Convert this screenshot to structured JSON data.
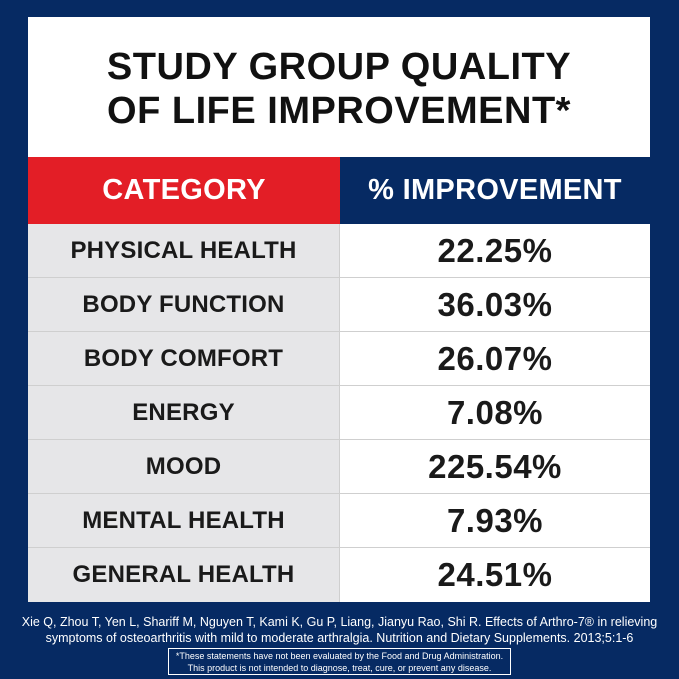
{
  "title": {
    "line1": "STUDY GROUP QUALITY",
    "line2": "OF LIFE IMPROVEMENT*"
  },
  "table": {
    "header_category": "CATEGORY",
    "header_improvement": "% IMPROVEMENT",
    "rows": [
      {
        "category": "PHYSICAL HEALTH",
        "value": "22.25%"
      },
      {
        "category": "BODY FUNCTION",
        "value": "36.03%"
      },
      {
        "category": "BODY COMFORT",
        "value": "26.07%"
      },
      {
        "category": "ENERGY",
        "value": "7.08%"
      },
      {
        "category": "MOOD",
        "value": "225.54%"
      },
      {
        "category": "MENTAL HEALTH",
        "value": "7.93%"
      },
      {
        "category": "GENERAL HEALTH",
        "value": "24.51%"
      }
    ]
  },
  "citation": {
    "line1": "Xie Q, Zhou T, Yen L, Shariff M, Nguyen T, Kami K, Gu P, Liang, Jianyu Rao, Shi R. Effects of Arthro-7® in relieving",
    "line2": "symptoms of osteoarthritis with mild to moderate arthralgia. Nutrition and Dietary Supplements. 2013;5:1-6"
  },
  "disclaimer": {
    "line1": "*These statements have not been evaluated by the Food and Drug Administration.",
    "line2": "This product is not intended to diagnose, treat, cure, or prevent any disease."
  },
  "colors": {
    "background": "#062a63",
    "header_category": "#e31e26",
    "header_improvement": "#062a63",
    "category_cell": "#e6e6e8"
  }
}
